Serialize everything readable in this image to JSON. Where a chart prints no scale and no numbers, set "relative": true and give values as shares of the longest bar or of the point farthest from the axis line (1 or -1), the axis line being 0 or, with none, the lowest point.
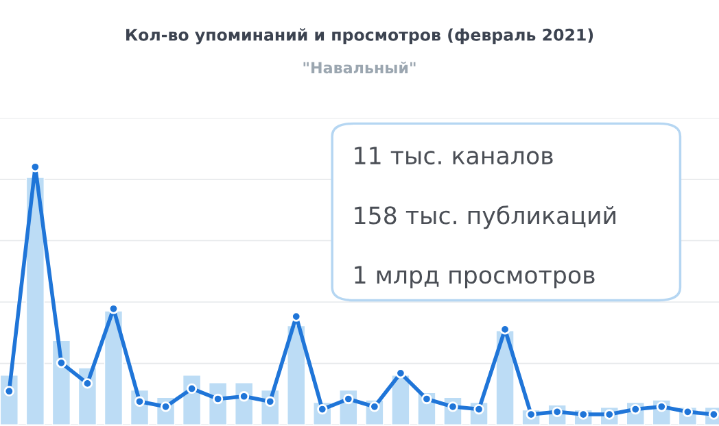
{
  "chart_data": [
    {
      "type": "bar",
      "title": "Кол-во упоминаний и просмотров (февраль 2021)",
      "subtitle": "\"Навальный\"",
      "relative": true,
      "grid": "y",
      "categories": [
        null,
        null,
        null,
        null,
        null,
        null,
        null,
        null,
        null,
        null,
        null,
        null,
        null,
        null,
        null,
        null,
        null,
        null,
        null,
        null,
        null,
        null,
        null,
        null,
        null,
        null,
        null,
        null
      ],
      "color": "#bcdcf5",
      "values": [
        0.2,
        1,
        0.34,
        0.23,
        0.46,
        0.14,
        0.11,
        0.2,
        0.17,
        0.17,
        0.14,
        0.4,
        0.09,
        0.14,
        0.1,
        0.2,
        0.13,
        0.11,
        0.09,
        0.38,
        0.06,
        0.08,
        0.06,
        0.07,
        0.09,
        0.1,
        0.07,
        0.07
      ],
      "annotations": [
        "11 тыс. каналов",
        "158 тыс. публикаций",
        "1 млрд просмотров"
      ]
    },
    {
      "type": "line",
      "relative": true,
      "marker": "circle",
      "line_style": "solid",
      "categories": [
        null,
        null,
        null,
        null,
        null,
        null,
        null,
        null,
        null,
        null,
        null,
        null,
        null,
        null,
        null,
        null,
        null,
        null,
        null,
        null,
        null,
        null,
        null,
        null,
        null,
        null,
        null,
        null
      ],
      "color": "#1f75d8",
      "values": [
        0.13,
        1,
        0.24,
        0.16,
        0.45,
        0.09,
        0.07,
        0.14,
        0.1,
        0.11,
        0.09,
        0.42,
        0.06,
        0.1,
        0.07,
        0.2,
        0.1,
        0.07,
        0.06,
        0.37,
        0.04,
        0.05,
        0.04,
        0.04,
        0.06,
        0.07,
        0.05,
        0.04
      ]
    }
  ]
}
